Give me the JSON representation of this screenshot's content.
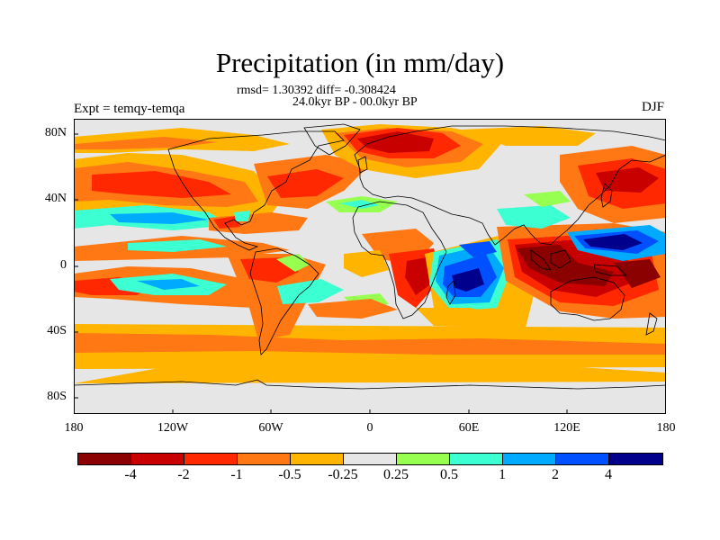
{
  "title": "Precipitation (in mm/day)",
  "stats": "rmsd= 1.30392  diff= -0.308424",
  "period": "24.0kyr BP - 00.0kyr BP",
  "experiment": "Expt = temqy-temqa",
  "season": "DJF",
  "lat_labels": [
    "80N",
    "40N",
    "0",
    "40S",
    "80S"
  ],
  "lon_labels": [
    "180",
    "120W",
    "60W",
    "0",
    "60E",
    "120E",
    "180"
  ],
  "colorbar": {
    "colors": [
      "#8b0000",
      "#c80000",
      "#ff2800",
      "#ff7814",
      "#ffb400",
      "#e6e6e6",
      "#96ff50",
      "#3cffd2",
      "#00aaff",
      "#0050ff",
      "#00008c"
    ],
    "labels": [
      "-4",
      "-2",
      "-1",
      "-0.5",
      "-0.25",
      "0.25",
      "0.5",
      "1",
      "2",
      "4"
    ]
  },
  "palette": {
    "ocean_bg": "#e6e6e6",
    "dark_red": "#8b0000",
    "red": "#c80000",
    "red_orange": "#ff2800",
    "orange": "#ff7814",
    "light_orange": "#ffb400",
    "green": "#96ff50",
    "aqua": "#3cffd2",
    "sky": "#00aaff",
    "blue": "#0050ff",
    "navy": "#00008c",
    "coast": "#000000"
  }
}
